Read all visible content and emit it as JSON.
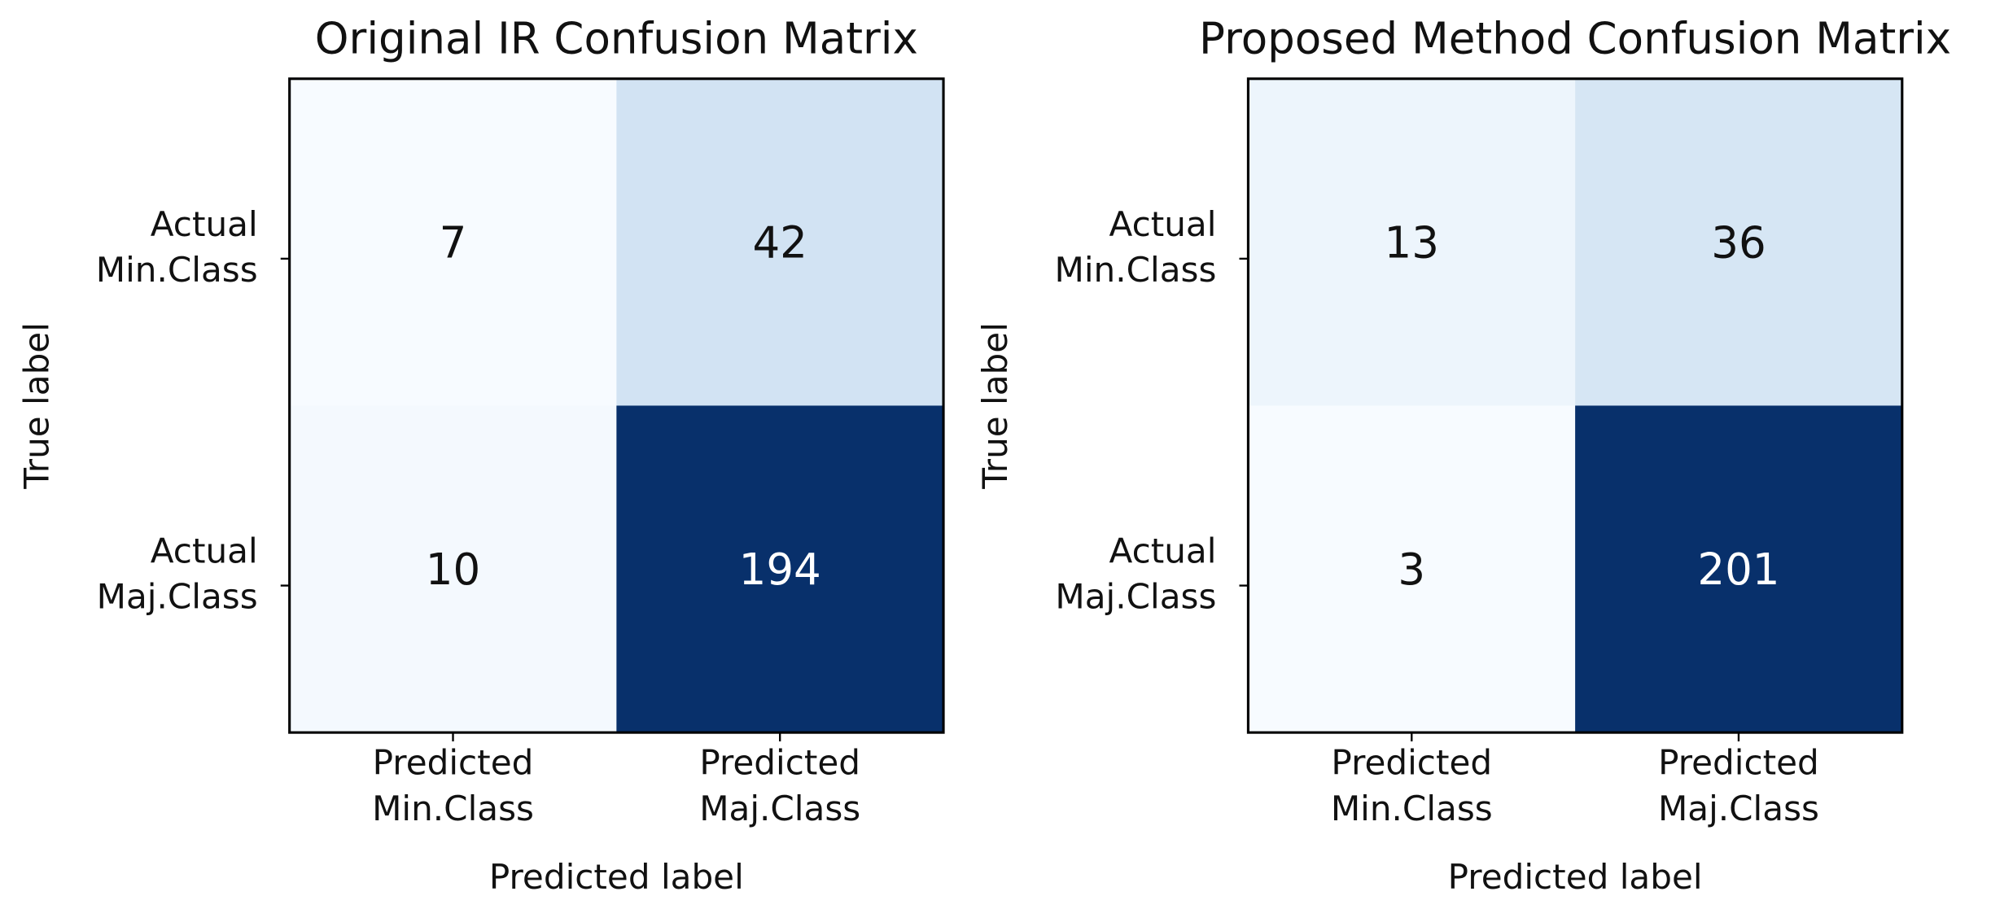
{
  "chart_data": [
    {
      "type": "heatmap",
      "title": "Original IR Confusion Matrix",
      "x_label": "Predicted label",
      "y_label": "True label",
      "x_categories": [
        "Predicted Min.Class",
        "Predicted Maj.Class"
      ],
      "y_categories": [
        "Actual Min.Class",
        "Actual Maj.Class"
      ],
      "values": [
        [
          7,
          42
        ],
        [
          10,
          194
        ]
      ],
      "colormap": "Blues"
    },
    {
      "type": "heatmap",
      "title": "Proposed Method Confusion Matrix",
      "x_label": "Predicted label",
      "y_label": "True label",
      "x_categories": [
        "Predicted Min.Class",
        "Predicted Maj.Class"
      ],
      "y_categories": [
        "Actual Min.Class",
        "Actual Maj.Class"
      ],
      "values": [
        [
          13,
          36
        ],
        [
          3,
          201
        ]
      ],
      "colormap": "Blues"
    }
  ]
}
